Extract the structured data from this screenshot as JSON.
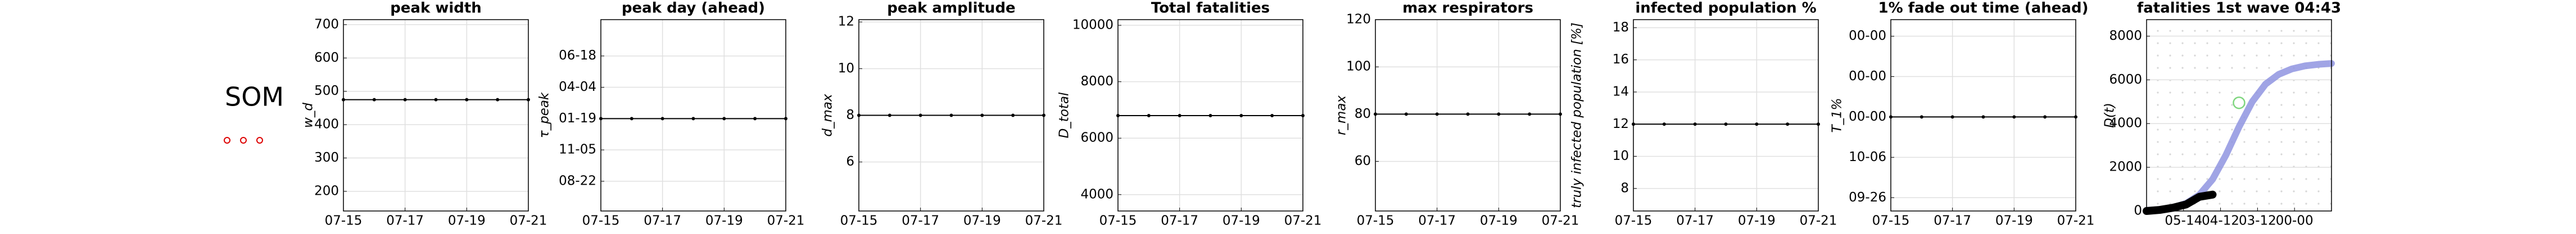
{
  "side_label": "SOM",
  "chart_data": [
    {
      "type": "line",
      "title": "peak width",
      "ylabel": "w_d",
      "categories": [
        "07-15",
        null,
        "07-17",
        null,
        "07-19",
        null,
        "07-21"
      ],
      "values": [
        475,
        475,
        475,
        475,
        475,
        475,
        475
      ],
      "color": "#000000",
      "ylim": [
        141,
        715
      ],
      "yticks": [
        200,
        300,
        400,
        500,
        600,
        700
      ],
      "grid": true
    },
    {
      "type": "line",
      "title": "peak day (ahead)",
      "ylabel": "τ_peak",
      "categories": [
        "07-15",
        null,
        "07-17",
        null,
        "07-19",
        null,
        "07-21"
      ],
      "values": [
        "01-19",
        "01-19",
        "01-19",
        "01-19",
        "01-19",
        "01-19",
        "01-19"
      ],
      "color": "#000000",
      "ycategories": [
        "08-22",
        "11-05",
        "01-19",
        "04-04",
        "06-18"
      ],
      "grid": true
    },
    {
      "type": "line",
      "title": "peak amplitude",
      "ylabel": "d_max",
      "categories": [
        "07-15",
        null,
        "07-17",
        null,
        "07-19",
        null,
        "07-21"
      ],
      "values": [
        8,
        8,
        8,
        8,
        8,
        8,
        8
      ],
      "color": "#000000",
      "ylim": [
        3.9,
        12.1
      ],
      "yticks": [
        6,
        8,
        10,
        12
      ],
      "grid": true
    },
    {
      "type": "line",
      "title": "Total fatalities",
      "ylabel": "D_total",
      "categories": [
        "07-15",
        null,
        "07-17",
        null,
        "07-19",
        null,
        "07-21"
      ],
      "values": [
        6800,
        6800,
        6800,
        6800,
        6800,
        6800,
        6800
      ],
      "color": "#000000",
      "ylim": [
        3420,
        10200
      ],
      "yticks": [
        4000,
        6000,
        8000,
        10000
      ],
      "grid": true
    },
    {
      "type": "line",
      "title": "max respirators",
      "ylabel": "r_max",
      "categories": [
        "07-15",
        null,
        "07-17",
        null,
        "07-19",
        null,
        "07-21"
      ],
      "values": [
        80,
        80,
        80,
        80,
        80,
        80,
        80
      ],
      "color": "#000000",
      "ylim": [
        39,
        120
      ],
      "yticks": [
        60,
        80,
        100,
        120
      ],
      "grid": true
    },
    {
      "type": "line",
      "title": "infected population %",
      "ylabel": "truly infected population [%]",
      "categories": [
        "07-15",
        null,
        "07-17",
        null,
        "07-19",
        null,
        "07-21"
      ],
      "values": [
        12,
        12,
        12,
        12,
        12,
        12,
        12
      ],
      "color": "#000000",
      "ylim": [
        6.6,
        18.5
      ],
      "yticks": [
        8,
        10,
        12,
        14,
        16,
        18
      ],
      "grid": true
    },
    {
      "type": "line",
      "title": "1% fade out time (ahead)",
      "ylabel": "T_1%",
      "categories": [
        "07-15",
        null,
        "07-17",
        null,
        "07-19",
        null,
        "07-21"
      ],
      "values": [
        "00-00",
        "00-00",
        "00-00",
        "00-00",
        "00-00",
        "00-00",
        "00-00"
      ],
      "color": "#000000",
      "ycategories": [
        "09-26",
        "10-06",
        "00-00",
        "00-00",
        "00-00"
      ],
      "grid": true
    },
    {
      "type": "multi",
      "title": "fatalities 1st wave 04:43",
      "ylabel": "D(t)",
      "xcategories": [
        "05-14",
        "04-12",
        "03-12",
        "00-00"
      ],
      "ylim": [
        0,
        8755
      ],
      "yticks": [
        0,
        2000,
        4000,
        6000,
        8000
      ],
      "grid": true,
      "series": [
        {
          "color": "#8f94e0",
          "mode": "line",
          "values": [
            30,
            70,
            160,
            350,
            740,
            1450,
            2550,
            3850,
            5000,
            5800,
            6250,
            6500,
            6640,
            6710,
            6750
          ]
        },
        {
          "color": "#000000",
          "mode": "line",
          "values": [
            0,
            50,
            150,
            300,
            650,
            750,
            null,
            null,
            null,
            null,
            null,
            null,
            null,
            null,
            null
          ]
        },
        {
          "color": "#7fd67f",
          "mode": "markers",
          "values": [
            null,
            null,
            null,
            null,
            null,
            null,
            null,
            4950,
            null,
            null,
            null,
            null,
            null,
            null,
            null
          ]
        }
      ]
    }
  ]
}
